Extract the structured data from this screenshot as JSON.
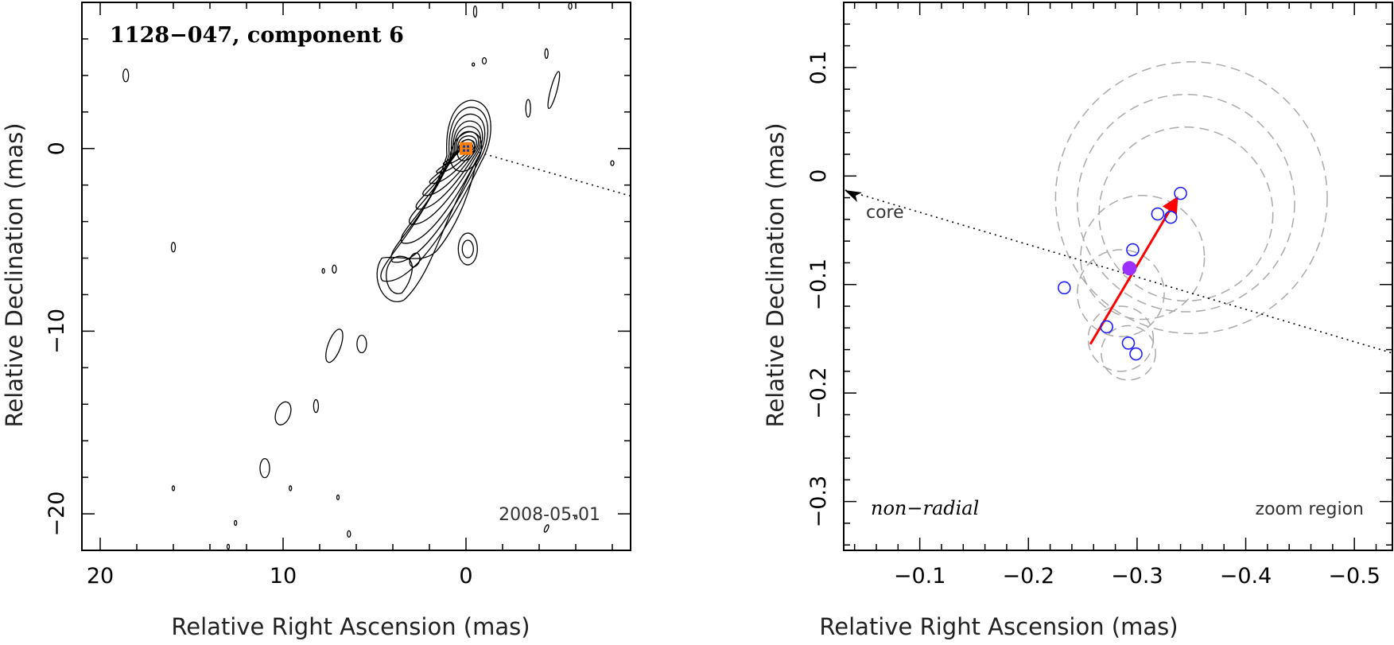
{
  "chart_data": [
    {
      "type": "contour",
      "title": "1128−047, component 6",
      "epoch": "2008-05-01",
      "xlabel": "Relative Right Ascension (mas)",
      "ylabel": "Relative Declination (mas)",
      "xlim": [
        21,
        -9
      ],
      "ylim": [
        -22,
        8
      ],
      "x_ticks": [
        20,
        10,
        0
      ],
      "x_tick_labels": [
        "20",
        "10",
        "0"
      ],
      "y_ticks": [
        0,
        -10,
        -20
      ],
      "y_tick_labels": [
        "0",
        "−10",
        "−20"
      ],
      "marker": {
        "x": 0,
        "y": 0,
        "color": "#ff7f0e"
      },
      "core_direction_line": {
        "from": [
          0,
          0
        ],
        "to": [
          -9,
          -2.6
        ]
      }
    },
    {
      "type": "scatter",
      "xlabel": "Relative Right Ascension (mas)",
      "ylabel": "Relative Declination (mas)",
      "xlim": [
        -0.03,
        -0.535
      ],
      "ylim": [
        -0.345,
        0.16
      ],
      "x_ticks": [
        -0.1,
        -0.2,
        -0.3,
        -0.4,
        -0.5
      ],
      "x_tick_labels": [
        "−0.1",
        "−0.2",
        "−0.3",
        "−0.4",
        "−0.5"
      ],
      "y_ticks": [
        0.1,
        0.0,
        -0.1,
        -0.2,
        -0.3
      ],
      "y_tick_labels": [
        "0.1",
        "0",
        "−0.1",
        "−0.2",
        "−0.3"
      ],
      "points": [
        {
          "x": -0.233,
          "y": -0.103
        },
        {
          "x": -0.272,
          "y": -0.139
        },
        {
          "x": -0.292,
          "y": -0.154
        },
        {
          "x": -0.299,
          "y": -0.164
        },
        {
          "x": -0.296,
          "y": -0.068
        },
        {
          "x": -0.319,
          "y": -0.035
        },
        {
          "x": -0.331,
          "y": -0.038
        },
        {
          "x": -0.34,
          "y": -0.016
        }
      ],
      "mean_point": {
        "x": -0.293,
        "y": -0.085,
        "color": "#9b30ff"
      },
      "velocity_arrow": {
        "from": [
          -0.257,
          -0.155
        ],
        "to": [
          -0.337,
          -0.02
        ],
        "color": "#ff0000"
      },
      "core_direction_line": {
        "from": [
          -0.03,
          -0.013
        ],
        "to": [
          -0.535,
          -0.163
        ]
      },
      "circles": [
        {
          "cx": -0.35,
          "cy": -0.02,
          "r": 0.125
        },
        {
          "cx": -0.345,
          "cy": -0.025,
          "r": 0.1
        },
        {
          "cx": -0.345,
          "cy": -0.035,
          "r": 0.08
        },
        {
          "cx": -0.305,
          "cy": -0.075,
          "r": 0.057
        },
        {
          "cx": -0.285,
          "cy": -0.108,
          "r": 0.04
        },
        {
          "cx": -0.285,
          "cy": -0.15,
          "r": 0.03
        },
        {
          "cx": -0.292,
          "cy": -0.163,
          "r": 0.025
        }
      ],
      "annotations": {
        "core": "core",
        "type": "non−radial",
        "region": "zoom region"
      }
    }
  ]
}
